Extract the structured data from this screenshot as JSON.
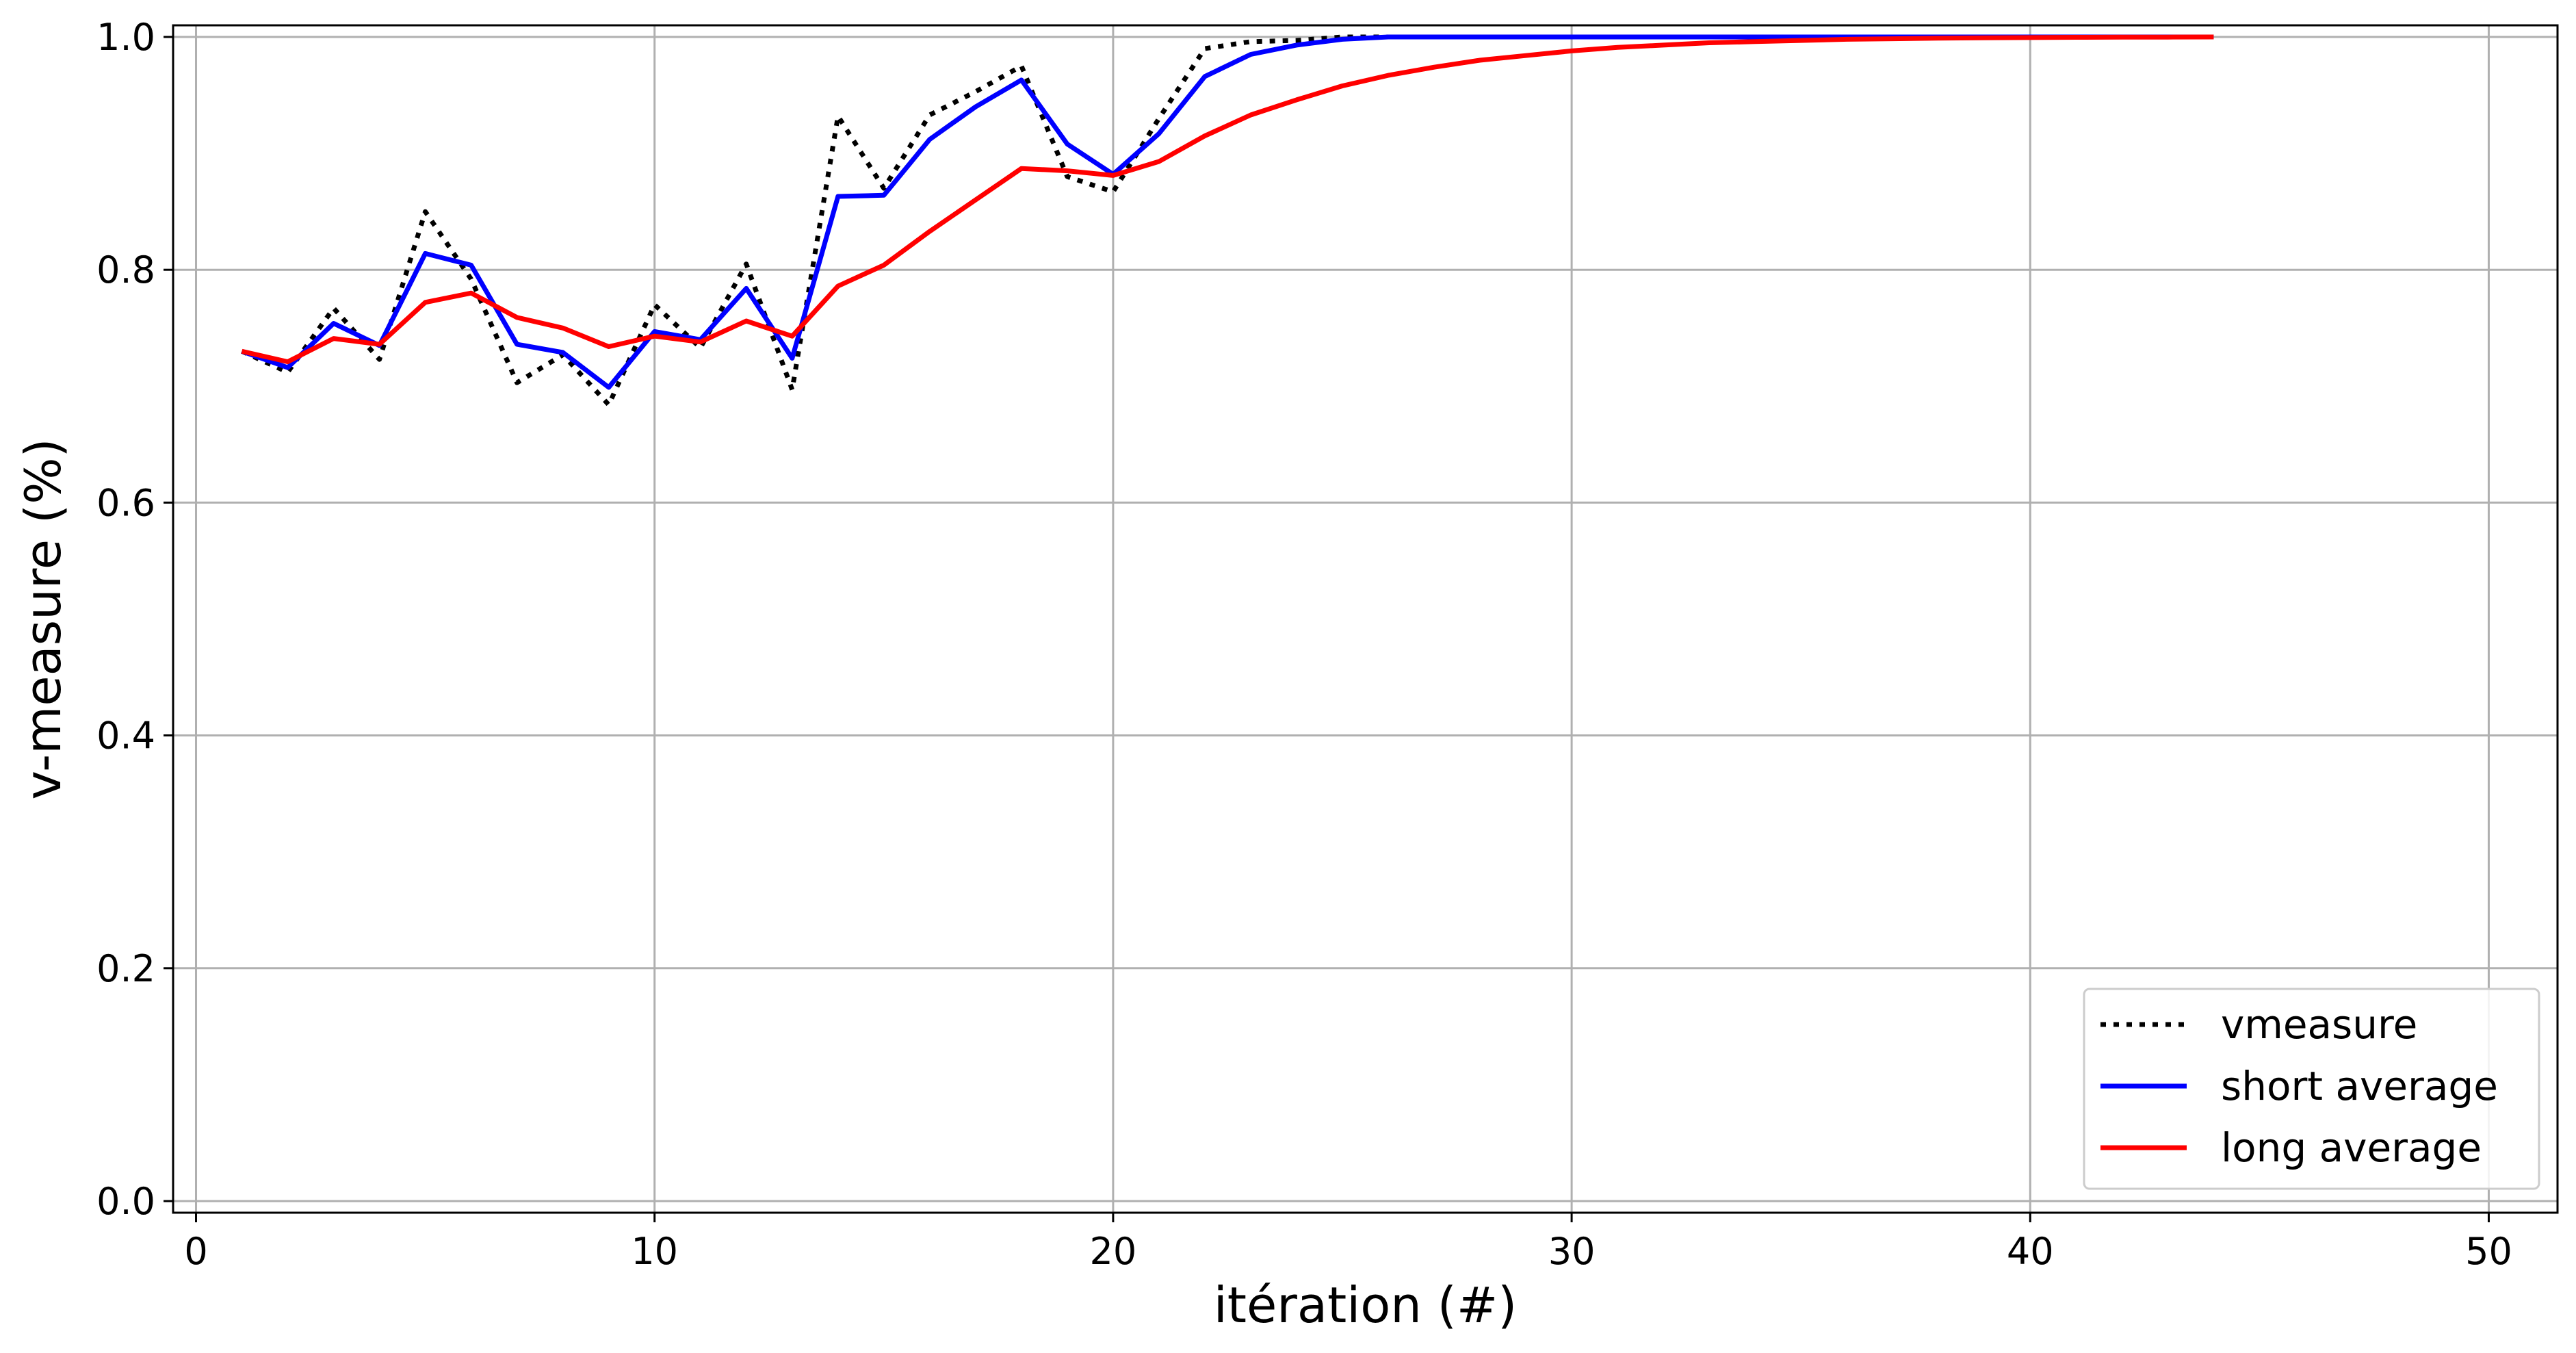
{
  "chart_data": {
    "type": "line",
    "xlabel": "itération (#)",
    "ylabel": "v-measure (%)",
    "xlim": [
      -0.5,
      51.5
    ],
    "ylim": [
      -0.01,
      1.01
    ],
    "x_ticks": [
      0,
      10,
      20,
      30,
      40,
      50
    ],
    "y_ticks": [
      0.0,
      0.2,
      0.4,
      0.6,
      0.8,
      1.0
    ],
    "x_tick_labels": [
      "0",
      "10",
      "20",
      "30",
      "40",
      "50"
    ],
    "y_tick_labels": [
      "0.0",
      "0.2",
      "0.4",
      "0.6",
      "0.8",
      "1.0"
    ],
    "grid": true,
    "legend_position": "bottom-right",
    "x": [
      1,
      2,
      3,
      4,
      5,
      6,
      7,
      8,
      9,
      10,
      11,
      12,
      13,
      14,
      15,
      16,
      17,
      18,
      19,
      20,
      21,
      22,
      23,
      24,
      25,
      26,
      27,
      28,
      29,
      30,
      31,
      32,
      33,
      34,
      35,
      36,
      37,
      38,
      39,
      40,
      41,
      42,
      43,
      44
    ],
    "series": [
      {
        "name": "vmeasure",
        "color": "#000000",
        "style": "dotted",
        "values": [
          0.73,
          0.712,
          0.767,
          0.723,
          0.85,
          0.792,
          0.703,
          0.727,
          0.684,
          0.77,
          0.733,
          0.805,
          0.697,
          0.932,
          0.87,
          0.933,
          0.953,
          0.975,
          0.88,
          0.867,
          0.93,
          0.99,
          0.996,
          0.997,
          1.0,
          1.0,
          1.0,
          1.0,
          1.0,
          1.0,
          1.0,
          1.0,
          1.0,
          1.0,
          1.0,
          1.0,
          1.0,
          1.0,
          1.0,
          1.0,
          1.0,
          1.0,
          1.0,
          1.0
        ]
      },
      {
        "name": "short average",
        "color": "#0000ff",
        "style": "solid",
        "values": [
          0.73,
          0.716,
          0.754,
          0.735,
          0.814,
          0.804,
          0.736,
          0.729,
          0.699,
          0.747,
          0.74,
          0.784,
          0.724,
          0.863,
          0.864,
          0.912,
          0.94,
          0.963,
          0.908,
          0.882,
          0.917,
          0.966,
          0.985,
          0.993,
          0.998,
          1.0,
          1.0,
          1.0,
          1.0,
          1.0,
          1.0,
          1.0,
          1.0,
          1.0,
          1.0,
          1.0,
          1.0,
          1.0,
          1.0,
          1.0,
          1.0,
          1.0,
          1.0,
          1.0
        ]
      },
      {
        "name": "long average",
        "color": "#ff0000",
        "style": "solid",
        "values": [
          0.73,
          0.721,
          0.741,
          0.736,
          0.772,
          0.78,
          0.759,
          0.75,
          0.734,
          0.743,
          0.738,
          0.756,
          0.743,
          0.786,
          0.804,
          0.833,
          0.86,
          0.887,
          0.885,
          0.881,
          0.893,
          0.915,
          0.933,
          0.946,
          0.958,
          0.967,
          0.974,
          0.98,
          0.984,
          0.988,
          0.991,
          0.993,
          0.995,
          0.996,
          0.997,
          0.998,
          0.9985,
          0.999,
          0.9993,
          0.9995,
          0.9997,
          0.9998,
          0.9999,
          1.0
        ]
      }
    ]
  }
}
